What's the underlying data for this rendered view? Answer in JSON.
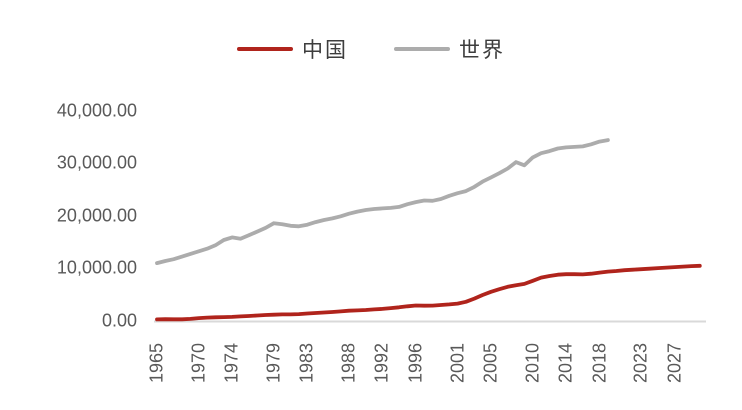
{
  "chart_data": {
    "type": "line",
    "title": "",
    "xlabel": "",
    "ylabel": "",
    "grid": false,
    "legend_position": "top-center",
    "background_color": "#ffffff",
    "axis_line_color": "#d9d9d9",
    "tick_label_color": "#595959",
    "xlim": [
      1965,
      2030
    ],
    "ylim": [
      0,
      40000
    ],
    "x_tick_labels": [
      "1965",
      "1970",
      "1974",
      "1979",
      "1983",
      "1988",
      "1992",
      "1996",
      "2001",
      "2005",
      "2010",
      "2014",
      "2018",
      "2023",
      "2027"
    ],
    "y_ticks": [
      {
        "value": 0,
        "label": "0.00"
      },
      {
        "value": 10000,
        "label": "10,000.00"
      },
      {
        "value": 20000,
        "label": "20,000.00"
      },
      {
        "value": 30000,
        "label": "30,000.00"
      },
      {
        "value": 40000,
        "label": "40,000.00"
      }
    ],
    "series": [
      {
        "key": "china",
        "name": "中国",
        "color": "#b0241c",
        "start_year": 1965,
        "values": [
          300,
          350,
          330,
          330,
          400,
          550,
          650,
          700,
          750,
          780,
          880,
          950,
          1050,
          1150,
          1200,
          1250,
          1250,
          1320,
          1420,
          1520,
          1620,
          1720,
          1830,
          1950,
          2020,
          2100,
          2200,
          2300,
          2450,
          2600,
          2800,
          2950,
          2900,
          2920,
          3050,
          3150,
          3300,
          3650,
          4250,
          4950,
          5550,
          6050,
          6500,
          6800,
          7050,
          7650,
          8250,
          8550,
          8800,
          8900,
          8900,
          8850,
          9000,
          9200,
          9400,
          9500,
          9650,
          9750,
          9850,
          9950,
          10050,
          10150,
          10250,
          10350,
          10430,
          10500
        ]
      },
      {
        "key": "world",
        "name": "世界",
        "color": "#acacac",
        "start_year": 1965,
        "values": [
          11000,
          11400,
          11750,
          12250,
          12750,
          13250,
          13750,
          14400,
          15400,
          15900,
          15650,
          16300,
          17000,
          17700,
          18600,
          18400,
          18100,
          18000,
          18300,
          18800,
          19200,
          19500,
          19900,
          20400,
          20800,
          21100,
          21300,
          21400,
          21500,
          21700,
          22200,
          22600,
          22900,
          22850,
          23200,
          23800,
          24300,
          24700,
          25500,
          26500,
          27300,
          28100,
          29000,
          30200,
          29600,
          31100,
          31900,
          32300,
          32800,
          33000,
          33100,
          33200,
          33600,
          34100,
          34400
        ]
      }
    ]
  }
}
